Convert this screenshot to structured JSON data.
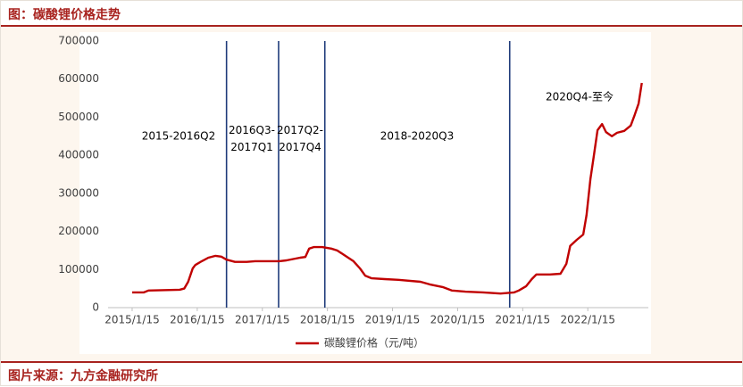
{
  "chart_data": {
    "type": "line",
    "title": "图：碳酸锂价格走势",
    "source": "图片来源：九方金融研究所",
    "x": [
      2015.04,
      2015.22,
      2015.29,
      2015.77,
      2015.84,
      2015.9,
      2015.97,
      2016.01,
      2016.11,
      2016.21,
      2016.32,
      2016.41,
      2016.49,
      2016.62,
      2016.8,
      2016.93,
      2017.14,
      2017.3,
      2017.41,
      2017.62,
      2017.7,
      2017.76,
      2017.83,
      2017.96,
      2018.1,
      2018.19,
      2018.3,
      2018.44,
      2018.54,
      2018.62,
      2018.72,
      2018.92,
      2019.13,
      2019.47,
      2019.61,
      2019.81,
      2019.95,
      2020.16,
      2020.43,
      2020.7,
      2020.91,
      2020.98,
      2021.09,
      2021.18,
      2021.25,
      2021.46,
      2021.62,
      2021.71,
      2021.77,
      2021.87,
      2021.97,
      2022.02,
      2022.08,
      2022.13,
      2022.19,
      2022.26,
      2022.32,
      2022.41,
      2022.49,
      2022.6,
      2022.7,
      2022.76,
      2022.82,
      2022.87
    ],
    "series": [
      {
        "name": "碳酸锂价格（元/吨）",
        "color": "#c00000",
        "values": [
          40000,
          40000,
          45000,
          47000,
          50000,
          68000,
          103000,
          112000,
          122000,
          131000,
          136000,
          134000,
          126000,
          120000,
          120000,
          122000,
          122000,
          122000,
          124000,
          131000,
          133000,
          155000,
          159000,
          159000,
          155000,
          150000,
          138000,
          122000,
          103000,
          84000,
          77000,
          75000,
          73000,
          68000,
          61000,
          54000,
          45000,
          42000,
          40000,
          37000,
          40000,
          45000,
          56000,
          75000,
          87000,
          87000,
          89000,
          115000,
          162000,
          178000,
          192000,
          243000,
          337000,
          396000,
          466000,
          482000,
          461000,
          450000,
          459000,
          464000,
          478000,
          506000,
          536000,
          590000
        ]
      }
    ],
    "xlim": [
      2014.67,
      2022.97
    ],
    "xticks": [
      {
        "value": 2015.04,
        "label": "2015/1/15"
      },
      {
        "value": 2016.04,
        "label": "2016/1/15"
      },
      {
        "value": 2017.04,
        "label": "2017/1/15"
      },
      {
        "value": 2018.04,
        "label": "2018/1/15"
      },
      {
        "value": 2019.04,
        "label": "2019/1/15"
      },
      {
        "value": 2020.04,
        "label": "2020/1/15"
      },
      {
        "value": 2021.04,
        "label": "2021/1/15"
      },
      {
        "value": 2022.04,
        "label": "2022/1/15"
      }
    ],
    "ylim": [
      0,
      700000
    ],
    "yticks": [
      0,
      100000,
      200000,
      300000,
      400000,
      500000,
      600000,
      700000
    ],
    "grid": false,
    "period_lines": {
      "color": "#1f3b7a",
      "values": [
        2016.49,
        2017.29,
        2018.0,
        2020.84
      ]
    },
    "annotations": [
      [
        "2015-2016Q2"
      ],
      [
        "2016Q3-",
        "2017Q1"
      ],
      [
        "2017Q2-",
        "2017Q4"
      ],
      [
        "2018-2020Q3"
      ],
      [
        "2020Q4-至今"
      ]
    ],
    "legend": "bottom"
  }
}
